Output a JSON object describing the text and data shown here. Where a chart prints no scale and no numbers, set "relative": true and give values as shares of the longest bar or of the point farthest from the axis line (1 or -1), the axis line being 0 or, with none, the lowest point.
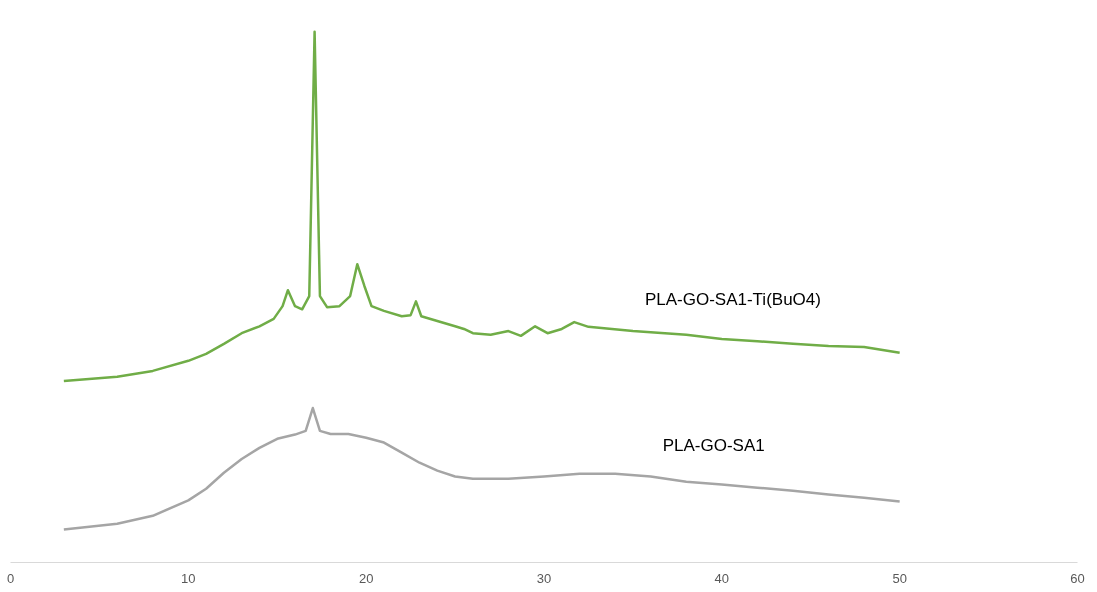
{
  "chart_data": {
    "type": "line",
    "relative": true,
    "xlim": [
      0,
      60
    ],
    "xticks": [
      0,
      10,
      20,
      30,
      40,
      50,
      60
    ],
    "grid": false,
    "legend": false,
    "marker": "none",
    "line_style": "solid",
    "series": [
      {
        "name": "PLA-GO-SA1-Ti(BuO4)",
        "color": "#70ad47",
        "x": [
          3,
          6,
          8,
          10,
          11,
          12,
          13,
          14,
          14.8,
          15.3,
          15.6,
          16.0,
          16.4,
          16.8,
          17.1,
          17.4,
          17.8,
          18.5,
          19.1,
          19.5,
          19.9,
          20.3,
          21,
          22,
          22.5,
          22.8,
          23.1,
          24,
          25,
          25.5,
          26,
          27,
          28,
          28.7,
          29.5,
          30.2,
          31,
          31.7,
          32.5,
          35,
          38,
          40,
          42,
          44,
          46,
          48,
          50
        ],
        "values": [
          0.342,
          0.35,
          0.361,
          0.38,
          0.393,
          0.412,
          0.432,
          0.445,
          0.459,
          0.483,
          0.513,
          0.483,
          0.477,
          0.502,
          1.0,
          0.502,
          0.481,
          0.483,
          0.502,
          0.562,
          0.521,
          0.483,
          0.474,
          0.464,
          0.466,
          0.492,
          0.464,
          0.455,
          0.445,
          0.44,
          0.432,
          0.429,
          0.436,
          0.427,
          0.445,
          0.432,
          0.44,
          0.453,
          0.444,
          0.436,
          0.429,
          0.421,
          0.417,
          0.412,
          0.408,
          0.406,
          0.395
        ]
      },
      {
        "name": "PLA-GO-SA1",
        "color": "#a5a5a5",
        "x": [
          3,
          6,
          8,
          10,
          11,
          12,
          13,
          14,
          15,
          16,
          16.6,
          17.0,
          17.4,
          18,
          19,
          20,
          21,
          22,
          23,
          24,
          25,
          26,
          28,
          30,
          32,
          34,
          36,
          38,
          40,
          42,
          44,
          46,
          48,
          50
        ],
        "values": [
          0.062,
          0.073,
          0.088,
          0.117,
          0.139,
          0.169,
          0.195,
          0.216,
          0.233,
          0.241,
          0.248,
          0.291,
          0.248,
          0.242,
          0.242,
          0.235,
          0.226,
          0.207,
          0.188,
          0.173,
          0.162,
          0.158,
          0.158,
          0.162,
          0.167,
          0.167,
          0.162,
          0.152,
          0.147,
          0.141,
          0.135,
          0.128,
          0.122,
          0.115
        ]
      }
    ]
  }
}
